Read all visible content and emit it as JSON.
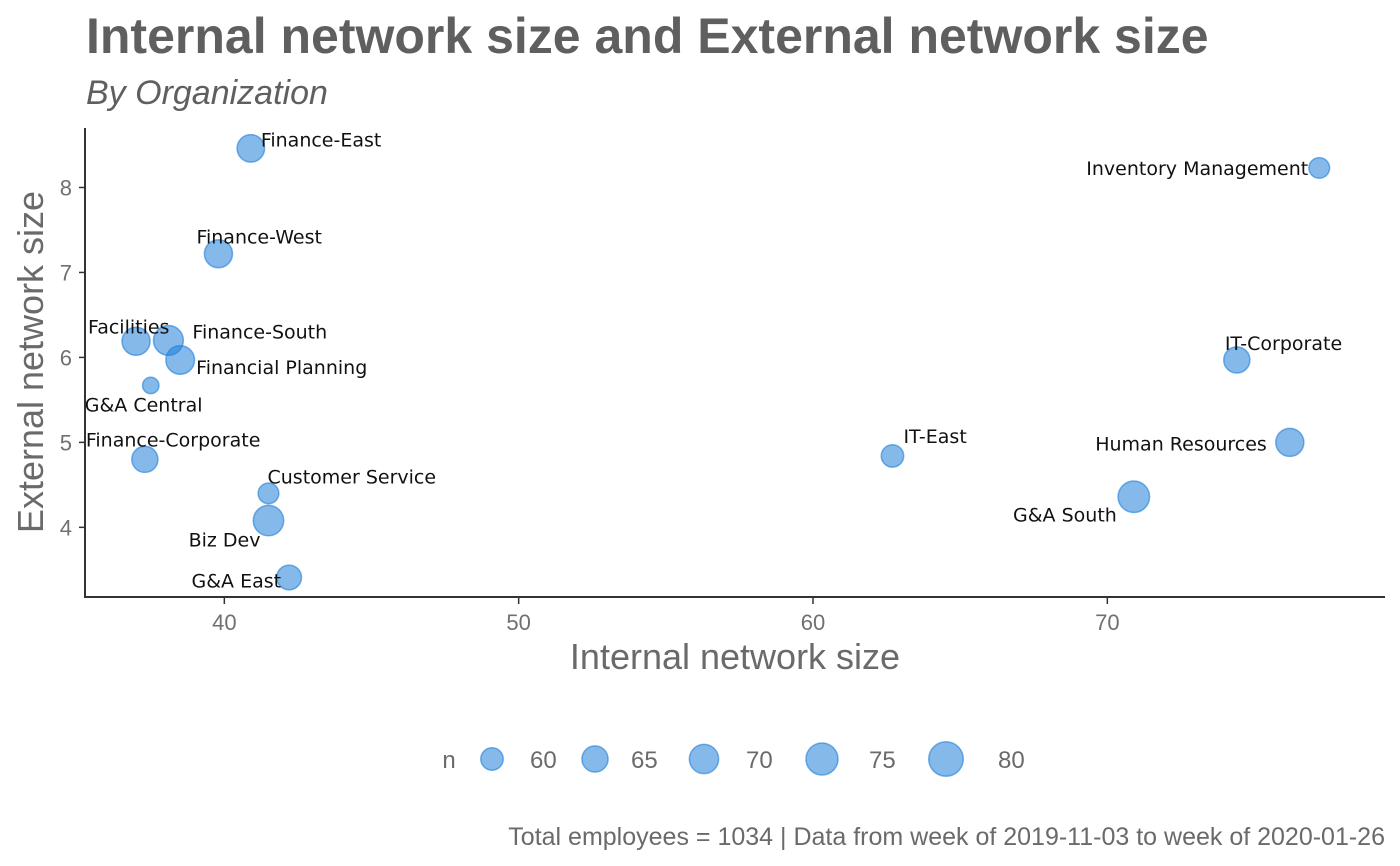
{
  "chart_data": {
    "type": "scatter",
    "title": "Internal network size and External network size",
    "subtitle": "By Organization",
    "xlabel": "Internal network size",
    "ylabel": "External network size",
    "xlim": [
      35.3,
      79.4
    ],
    "ylim": [
      3.18,
      8.7
    ],
    "x_ticks": [
      40,
      50,
      60,
      70
    ],
    "y_ticks": [
      4,
      5,
      6,
      7,
      8
    ],
    "grid": false,
    "color": "#1f7fd8",
    "points": [
      {
        "label": "Finance-East",
        "x": 40.9,
        "y": 8.46,
        "n": 67
      },
      {
        "label": "Inventory Management",
        "x": 77.2,
        "y": 8.23,
        "n": 58
      },
      {
        "label": "Finance-West",
        "x": 39.8,
        "y": 7.22,
        "n": 68
      },
      {
        "label": "Facilities",
        "x": 37.0,
        "y": 6.19,
        "n": 68
      },
      {
        "label": "Finance-South",
        "x": 38.1,
        "y": 6.2,
        "n": 71
      },
      {
        "label": "Financial Planning",
        "x": 38.5,
        "y": 5.97,
        "n": 69
      },
      {
        "label": "G&A Central",
        "x": 37.5,
        "y": 5.67,
        "n": 54
      },
      {
        "label": "IT-Corporate",
        "x": 74.4,
        "y": 5.97,
        "n": 65
      },
      {
        "label": "Finance-Corporate",
        "x": 37.3,
        "y": 4.8,
        "n": 65
      },
      {
        "label": "IT-East",
        "x": 62.7,
        "y": 4.84,
        "n": 60
      },
      {
        "label": "Human Resources",
        "x": 76.2,
        "y": 5.0,
        "n": 68
      },
      {
        "label": "Customer Service",
        "x": 41.5,
        "y": 4.4,
        "n": 58
      },
      {
        "label": "G&A South",
        "x": 70.9,
        "y": 4.36,
        "n": 74
      },
      {
        "label": "Biz Dev",
        "x": 41.5,
        "y": 4.08,
        "n": 72
      },
      {
        "label": "G&A East",
        "x": 42.2,
        "y": 3.41,
        "n": 63
      }
    ],
    "legend": {
      "title": "n",
      "placement": "bottom",
      "sizes": [
        60,
        65,
        70,
        75,
        80
      ]
    },
    "caption": "Total employees = 1034 | Data from week of 2019-11-03 to week of 2020-01-26"
  }
}
